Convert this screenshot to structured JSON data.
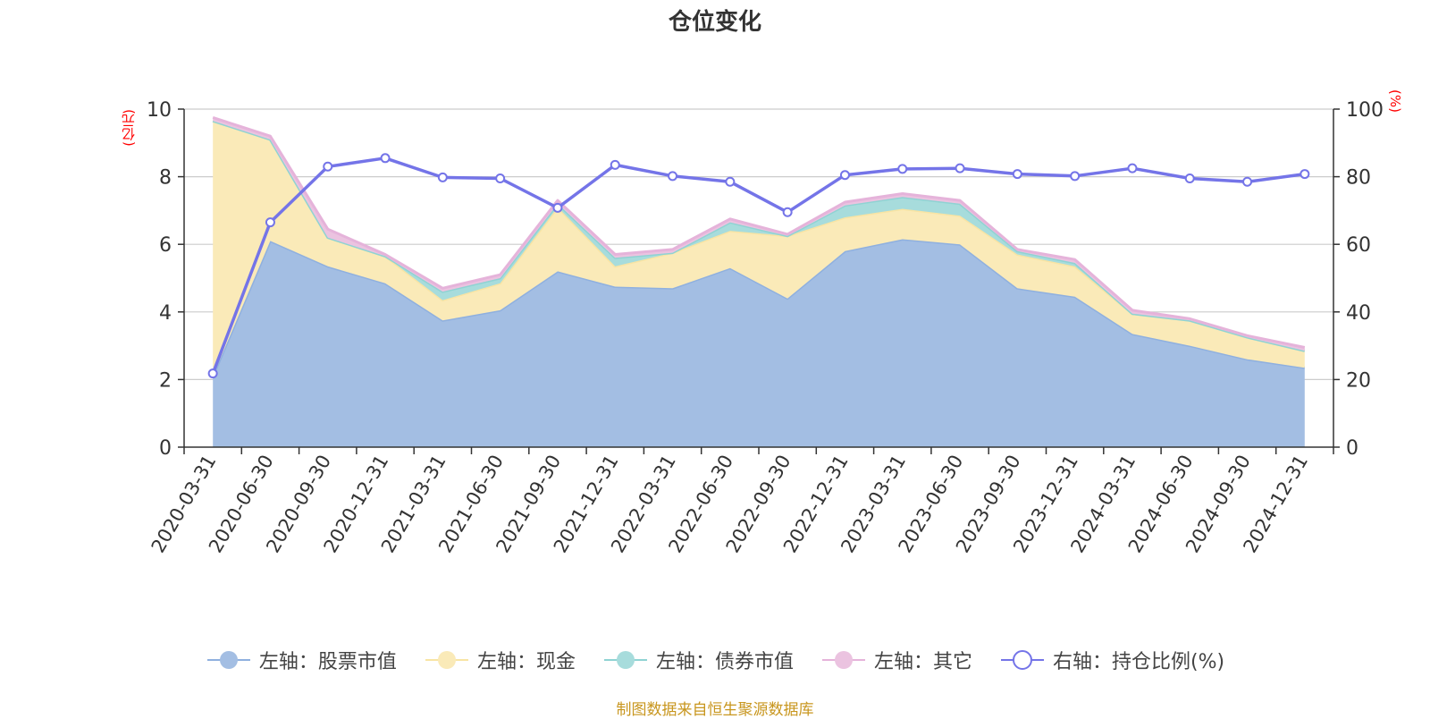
{
  "chart_data": {
    "type": "area",
    "title": "仓位变化",
    "left_axis_unit": "(亿元)",
    "right_axis_unit": "(%)",
    "left_ylim": [
      0,
      10
    ],
    "left_ticks": [
      0,
      2,
      4,
      6,
      8,
      10
    ],
    "right_ylim": [
      0,
      100
    ],
    "right_ticks": [
      0,
      20,
      40,
      60,
      80,
      100
    ],
    "categories": [
      "2020-03-31",
      "2020-06-30",
      "2020-09-30",
      "2020-12-31",
      "2021-03-31",
      "2021-06-30",
      "2021-09-30",
      "2021-12-31",
      "2022-03-31",
      "2022-06-30",
      "2022-09-30",
      "2022-12-31",
      "2023-03-31",
      "2023-06-30",
      "2023-09-30",
      "2023-12-31",
      "2024-03-31",
      "2024-06-30",
      "2024-09-30",
      "2024-12-31"
    ],
    "series": [
      {
        "name": "左轴：股票市值",
        "axis": "left",
        "stacked": true,
        "color": "#a3bee3",
        "line": "#8fb0df",
        "values": [
          2.1,
          6.1,
          5.35,
          4.85,
          3.75,
          4.05,
          5.2,
          4.75,
          4.7,
          5.3,
          4.4,
          5.8,
          6.15,
          6.0,
          4.7,
          4.45,
          3.35,
          3.0,
          2.6,
          2.35
        ]
      },
      {
        "name": "左轴：现金",
        "axis": "left",
        "stacked": true,
        "color": "#faeab8",
        "line": "#f8e4a4",
        "values": [
          7.55,
          3.0,
          0.85,
          0.8,
          0.6,
          0.8,
          1.9,
          0.6,
          1.05,
          1.1,
          1.85,
          1.0,
          0.9,
          0.85,
          1.0,
          0.9,
          0.6,
          0.75,
          0.65,
          0.5
        ]
      },
      {
        "name": "左轴：债券市值",
        "axis": "left",
        "stacked": true,
        "color": "#a7dcdc",
        "line": "#8fd3d3",
        "values": [
          0.0,
          0.0,
          0.0,
          0.0,
          0.25,
          0.15,
          0.1,
          0.25,
          0.0,
          0.25,
          0.0,
          0.35,
          0.35,
          0.35,
          0.1,
          0.1,
          0.0,
          0.0,
          0.0,
          0.0
        ]
      },
      {
        "name": "左轴：其它",
        "axis": "left",
        "stacked": true,
        "color": "#ebc3e0",
        "line": "#e5b3da",
        "values": [
          0.1,
          0.1,
          0.25,
          0.05,
          0.1,
          0.1,
          0.1,
          0.1,
          0.1,
          0.1,
          0.05,
          0.1,
          0.1,
          0.1,
          0.05,
          0.1,
          0.1,
          0.05,
          0.05,
          0.1
        ]
      },
      {
        "name": "右轴：持仓比例(%)",
        "axis": "right",
        "stacked": false,
        "color": "#7474e8",
        "line": "#7474e8",
        "values": [
          21.8,
          66.5,
          83.0,
          85.5,
          79.8,
          79.5,
          70.8,
          83.5,
          80.2,
          78.5,
          69.5,
          80.5,
          82.3,
          82.5,
          80.8,
          80.2,
          82.5,
          79.5,
          78.5,
          80.8
        ]
      }
    ],
    "source": "制图数据来自恒生聚源数据库"
  }
}
